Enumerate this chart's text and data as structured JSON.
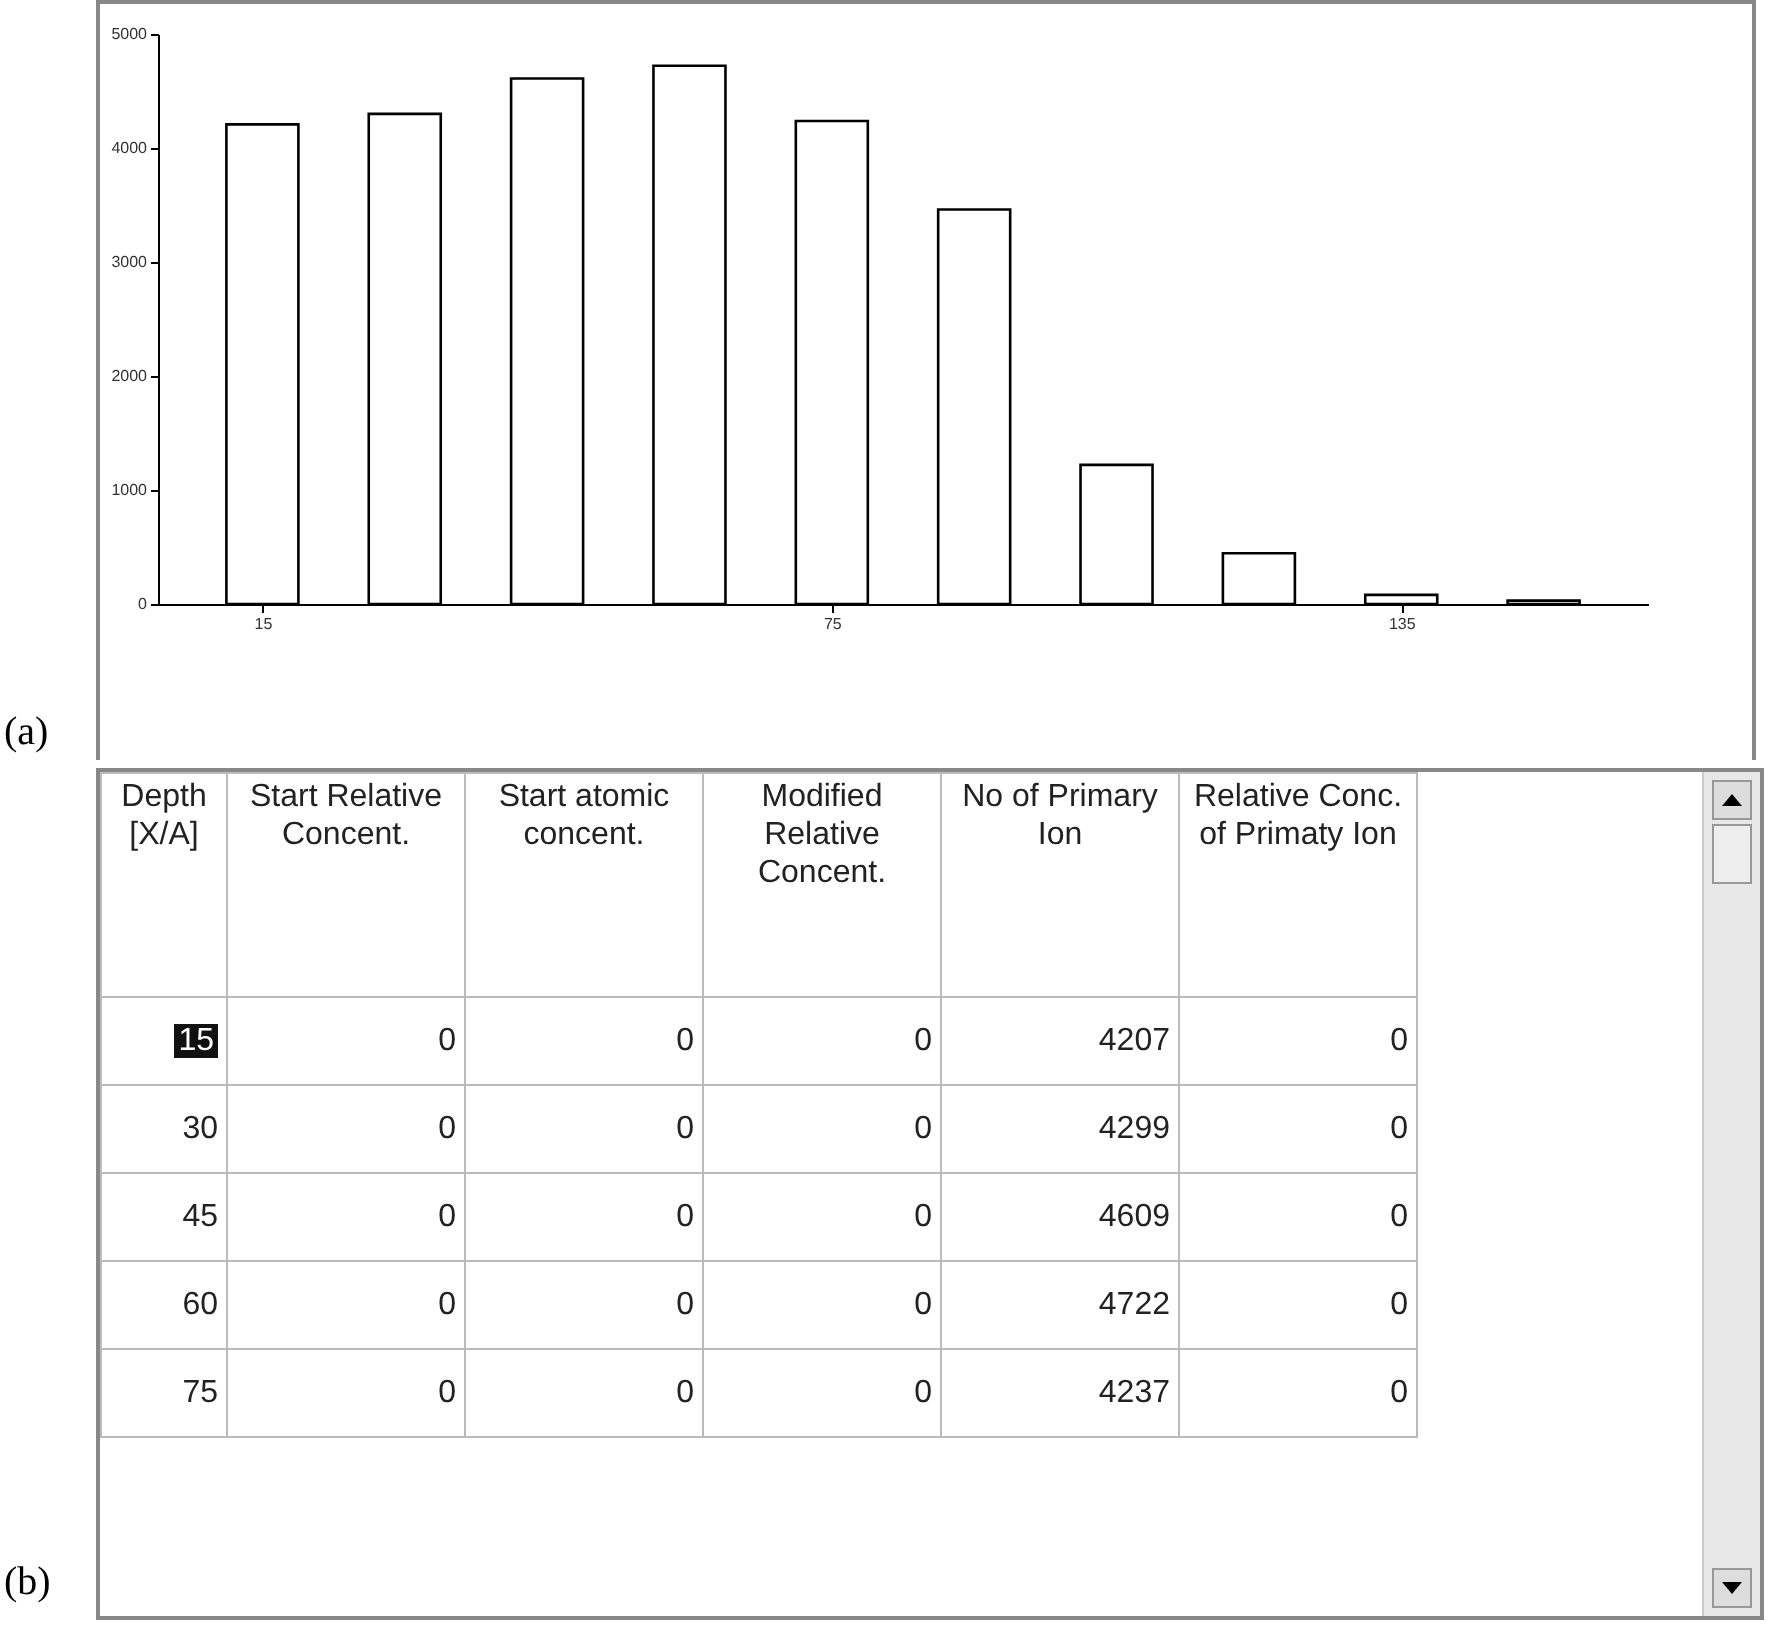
{
  "chart_data": [
    {
      "type": "bar",
      "title": "(a)",
      "x": [
        15,
        30,
        45,
        60,
        75,
        90,
        105,
        120,
        135,
        150
      ],
      "values": [
        4207,
        4299,
        4609,
        4722,
        4237,
        3460,
        1220,
        445,
        80,
        30
      ],
      "color": "#ffffff",
      "xlim": [
        4,
        161
      ],
      "xticks": [
        15,
        75,
        135
      ],
      "ylim": [
        0,
        5000
      ],
      "yticks": [
        0,
        1000,
        2000,
        3000,
        4000,
        5000
      ],
      "grid": false
    },
    {
      "type": "heatmap",
      "title": "(b)",
      "ylabel": "Depth [X/A]",
      "categories": [
        "Start Relative Concent.",
        "Start atomic concent.",
        "Modified Relative Concent.",
        "No of Primary Ion",
        "Relative Conc. of Primaty Ion"
      ],
      "y_categories": [
        "15",
        "30",
        "45",
        "60",
        "75"
      ],
      "cells": [
        [
          0,
          0,
          0,
          4207,
          0
        ],
        [
          0,
          0,
          0,
          4299,
          0
        ],
        [
          0,
          0,
          0,
          4609,
          0
        ],
        [
          0,
          0,
          0,
          4722,
          0
        ],
        [
          0,
          0,
          0,
          4237,
          0
        ]
      ],
      "data_labels": true
    }
  ]
}
